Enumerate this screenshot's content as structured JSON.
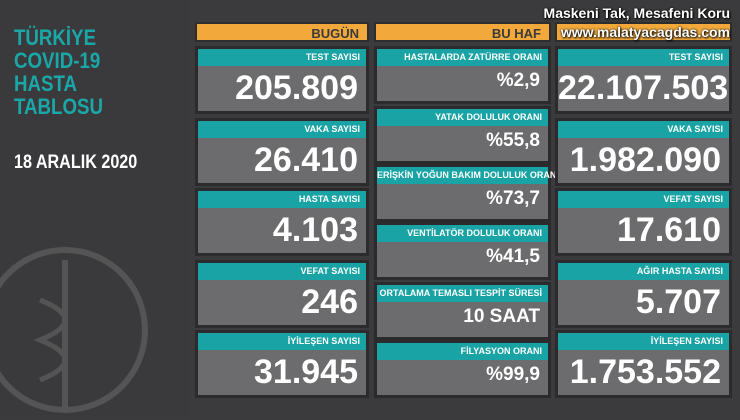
{
  "header": {
    "title_lines": [
      "TÜRKİYE",
      "COVID-19",
      "HASTA",
      "TABLOSU"
    ],
    "date": "18 ARALIK 2020"
  },
  "columns": {
    "today": {
      "heading": "BUGÜN",
      "cards": [
        {
          "label": "TEST SAYISI",
          "value": "205.809"
        },
        {
          "label": "VAKA SAYISI",
          "value": "26.410"
        },
        {
          "label": "HASTA SAYISI",
          "value": "4.103"
        },
        {
          "label": "VEFAT SAYISI",
          "value": "246"
        },
        {
          "label": "İYİLEŞEN SAYISI",
          "value": "31.945"
        }
      ]
    },
    "week": {
      "heading": "BU HAF",
      "cards": [
        {
          "label": "HASTALARDA ZATÜRRE ORANI",
          "value": "%2,9"
        },
        {
          "label": "YATAK DOLULUK ORANI",
          "value": "%55,8"
        },
        {
          "label": "ERİŞKİN YOĞUN BAKIM DOLULUK ORANI",
          "value": "%73,7"
        },
        {
          "label": "VENTİLATÖR DOLULUK ORANI",
          "value": "%41,5"
        },
        {
          "label": "ORTALAMA TEMASLI TESPİT SÜRESİ",
          "value": "10 SAAT"
        },
        {
          "label": "FİLYASYON ORANI",
          "value": "%99,9"
        }
      ]
    },
    "total": {
      "heading": "",
      "cards": [
        {
          "label": "TEST SAYISI",
          "value": "22.107.503"
        },
        {
          "label": "VAKA SAYISI",
          "value": "1.982.090"
        },
        {
          "label": "VEFAT SAYISI",
          "value": "17.610"
        },
        {
          "label": "AĞIR HASTA SAYISI",
          "value": "5.707"
        },
        {
          "label": "İYİLEŞEN SAYISI",
          "value": "1.753.552"
        }
      ]
    }
  },
  "watermark": {
    "line1": "Maskeni Tak, Mesafeni Koru",
    "line2": "www.malatyacagdas.com"
  },
  "colors": {
    "teal": "#1aa3a4",
    "orange": "#f2a83a",
    "card": "#6c6c6e"
  }
}
